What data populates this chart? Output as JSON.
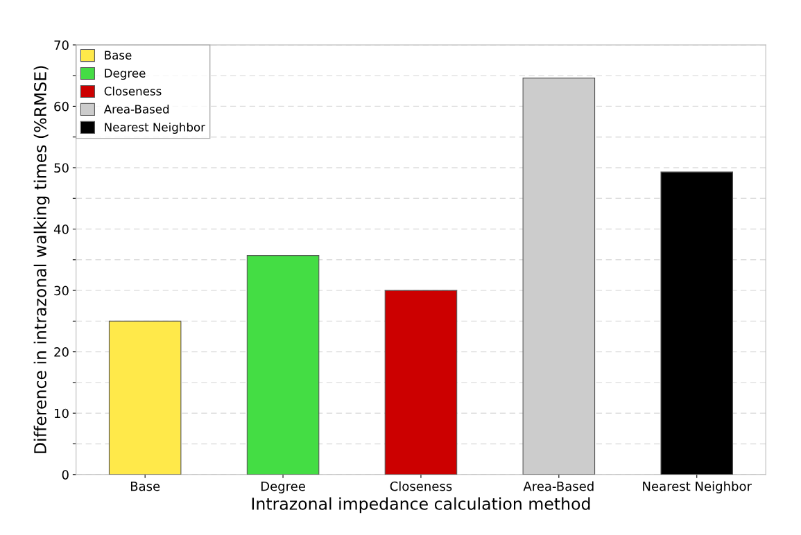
{
  "chart_data": {
    "type": "bar",
    "xlabel": "Intrazonal impedance calculation method",
    "ylabel": "Difference in intrazonal walking times (%RMSE)",
    "categories": [
      "Base",
      "Degree",
      "Closeness",
      "Area-Based",
      "Nearest Neighbor"
    ],
    "series": [
      {
        "name": "Base",
        "color": "#ffe94a",
        "values": [
          25,
          null,
          null,
          null,
          null
        ]
      },
      {
        "name": "Degree",
        "color": "#44dd44",
        "values": [
          null,
          35.7,
          null,
          null,
          null
        ]
      },
      {
        "name": "Closeness",
        "color": "#cc0000",
        "values": [
          null,
          null,
          30,
          null,
          null
        ]
      },
      {
        "name": "Area-Based",
        "color": "#cccccc",
        "values": [
          null,
          null,
          null,
          64.6,
          null
        ]
      },
      {
        "name": "Nearest Neighbor",
        "color": "#000000",
        "values": [
          null,
          null,
          null,
          null,
          49.3
        ]
      }
    ],
    "ylim": [
      0,
      70
    ],
    "yticks": [
      0,
      {
        "value": 5,
        "label": null
      },
      10,
      {
        "value": 15,
        "label": null
      },
      20,
      {
        "value": 25,
        "label": null
      },
      30,
      {
        "value": 35,
        "label": null
      },
      40,
      {
        "value": 45,
        "label": null
      },
      50,
      {
        "value": 55,
        "label": null
      },
      60,
      {
        "value": 65,
        "label": null
      },
      70
    ],
    "grid": "y",
    "legend": "top left"
  }
}
